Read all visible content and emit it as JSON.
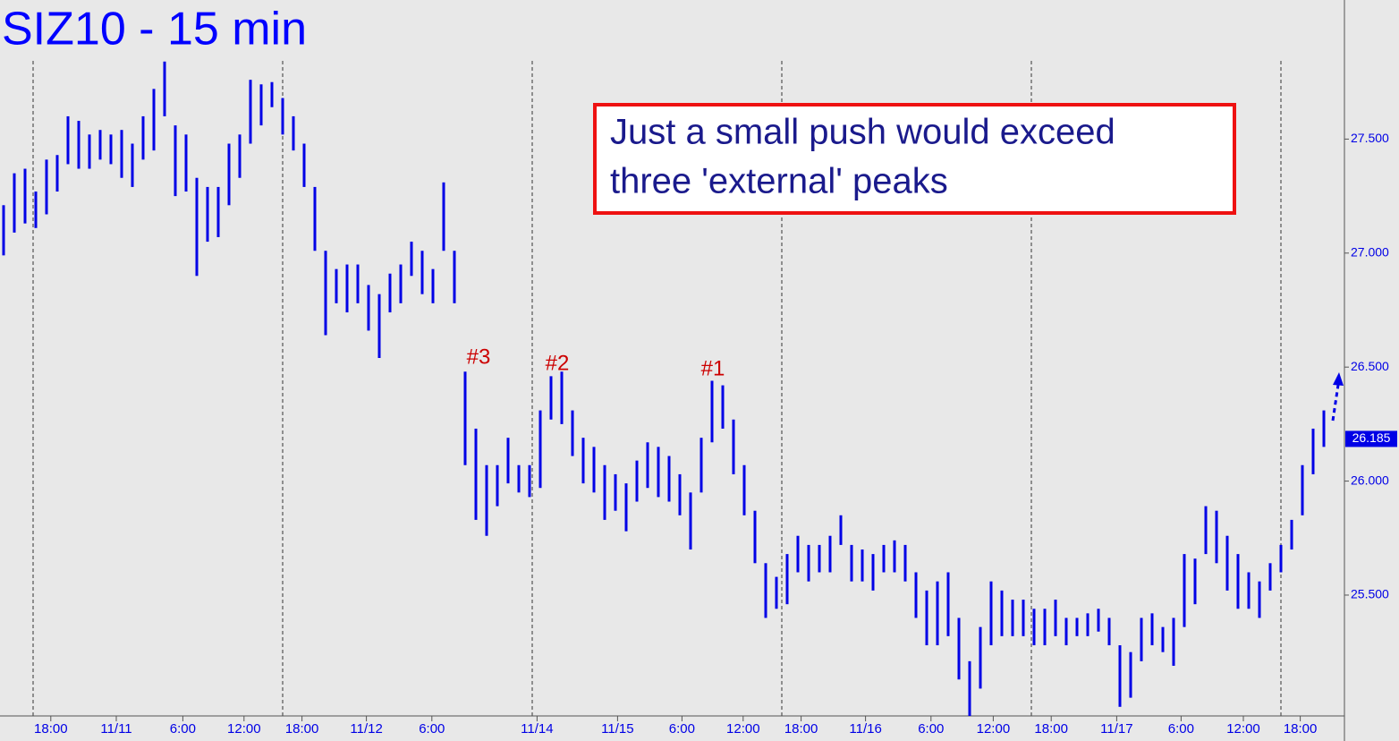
{
  "chart_data": {
    "type": "range_bar",
    "title": "SIZ10 - 15 min",
    "color": "#0000e6",
    "high": [
      27.21,
      27.35,
      27.37,
      27.27,
      27.41,
      27.43,
      27.6,
      27.58,
      27.52,
      27.54,
      27.52,
      27.54,
      27.48,
      27.6,
      27.72,
      27.84,
      27.56,
      27.52,
      27.33,
      27.29,
      27.29,
      27.48,
      27.52,
      27.76,
      27.74,
      27.75,
      27.68,
      27.6,
      27.48,
      27.29,
      27.01,
      26.93,
      26.95,
      26.95,
      26.86,
      26.82,
      26.91,
      26.95,
      27.05,
      27.01,
      26.93,
      27.31,
      27.01,
      26.48,
      26.23,
      26.07,
      26.07,
      26.19,
      26.07,
      26.07,
      26.31,
      26.46,
      26.48,
      26.31,
      26.19,
      26.15,
      26.07,
      26.03,
      25.99,
      26.09,
      26.17,
      26.15,
      26.11,
      26.03,
      25.95,
      26.19,
      26.44,
      26.42,
      26.27,
      26.07,
      25.87,
      25.64,
      25.58,
      25.68,
      25.76,
      25.72,
      25.72,
      25.76,
      25.85,
      25.72,
      25.7,
      25.68,
      25.72,
      25.74,
      25.72,
      25.6,
      25.52,
      25.56,
      25.6,
      25.4,
      25.21,
      25.36,
      25.56,
      25.52,
      25.48,
      25.48,
      25.44,
      25.44,
      25.48,
      25.4,
      25.4,
      25.42,
      25.44,
      25.4,
      25.28,
      25.25,
      25.4,
      25.42,
      25.36,
      25.4,
      25.68,
      25.66,
      25.89,
      25.87,
      25.76,
      25.68,
      25.6,
      25.56,
      25.64,
      25.72,
      25.83,
      26.07,
      26.23,
      26.31
    ],
    "low": [
      26.99,
      27.09,
      27.13,
      27.11,
      27.17,
      27.27,
      27.39,
      27.37,
      27.37,
      27.41,
      27.39,
      27.33,
      27.29,
      27.41,
      27.45,
      27.6,
      27.25,
      27.27,
      26.9,
      27.05,
      27.07,
      27.21,
      27.33,
      27.48,
      27.56,
      27.64,
      27.52,
      27.45,
      27.29,
      27.01,
      26.64,
      26.78,
      26.74,
      26.78,
      26.66,
      26.54,
      26.74,
      26.78,
      26.9,
      26.82,
      26.78,
      27.01,
      26.78,
      26.07,
      25.83,
      25.76,
      25.89,
      25.99,
      25.95,
      25.93,
      25.97,
      26.27,
      26.25,
      26.11,
      25.99,
      25.95,
      25.83,
      25.87,
      25.78,
      25.91,
      25.97,
      25.93,
      25.91,
      25.85,
      25.7,
      25.95,
      26.17,
      26.23,
      26.03,
      25.85,
      25.64,
      25.4,
      25.44,
      25.46,
      25.6,
      25.56,
      25.6,
      25.6,
      25.72,
      25.56,
      25.56,
      25.52,
      25.6,
      25.6,
      25.56,
      25.4,
      25.28,
      25.28,
      25.32,
      25.13,
      24.97,
      25.09,
      25.28,
      25.32,
      25.32,
      25.32,
      25.28,
      25.28,
      25.32,
      25.28,
      25.32,
      25.32,
      25.34,
      25.28,
      25.01,
      25.05,
      25.21,
      25.28,
      25.25,
      25.19,
      25.36,
      25.46,
      25.68,
      25.64,
      25.52,
      25.44,
      25.44,
      25.4,
      25.52,
      25.6,
      25.7,
      25.85,
      26.03,
      26.15
    ],
    "last": 26.185,
    "ylim": [
      24.97,
      28.11
    ],
    "yticks": [
      {
        "value": 25.5,
        "label": "25.500"
      },
      {
        "value": 26,
        "label": "26.000"
      },
      {
        "value": 26.5,
        "label": "26.500"
      },
      {
        "value": 27,
        "label": "27.000"
      },
      {
        "value": 27.5,
        "label": "27.500"
      }
    ],
    "xticks": [
      {
        "value": 4.4,
        "label": "18:00"
      },
      {
        "value": 10.5,
        "label": "11/11"
      },
      {
        "value": 16.7,
        "label": "6:00"
      },
      {
        "value": 22.4,
        "label": "12:00"
      },
      {
        "value": 27.8,
        "label": "18:00"
      },
      {
        "value": 33.8,
        "label": "11/12"
      },
      {
        "value": 39.9,
        "label": "6:00"
      },
      {
        "value": 49.7,
        "label": "11/14"
      },
      {
        "value": 57.2,
        "label": "11/15"
      },
      {
        "value": 63.2,
        "label": "6:00"
      },
      {
        "value": 68.9,
        "label": "12:00"
      },
      {
        "value": 74.3,
        "label": "18:00"
      },
      {
        "value": 80.3,
        "label": "11/16"
      },
      {
        "value": 86.4,
        "label": "6:00"
      },
      {
        "value": 92.2,
        "label": "12:00"
      },
      {
        "value": 97.6,
        "label": "18:00"
      },
      {
        "value": 103.7,
        "label": "11/17"
      },
      {
        "value": 109.7,
        "label": "6:00"
      },
      {
        "value": 115.5,
        "label": "12:00"
      },
      {
        "value": 120.8,
        "label": "18:00"
      }
    ],
    "annotations": [
      "#3",
      "#2",
      "#1"
    ],
    "note": [
      "Just a small push would exceed",
      "three 'external' peaks"
    ]
  }
}
